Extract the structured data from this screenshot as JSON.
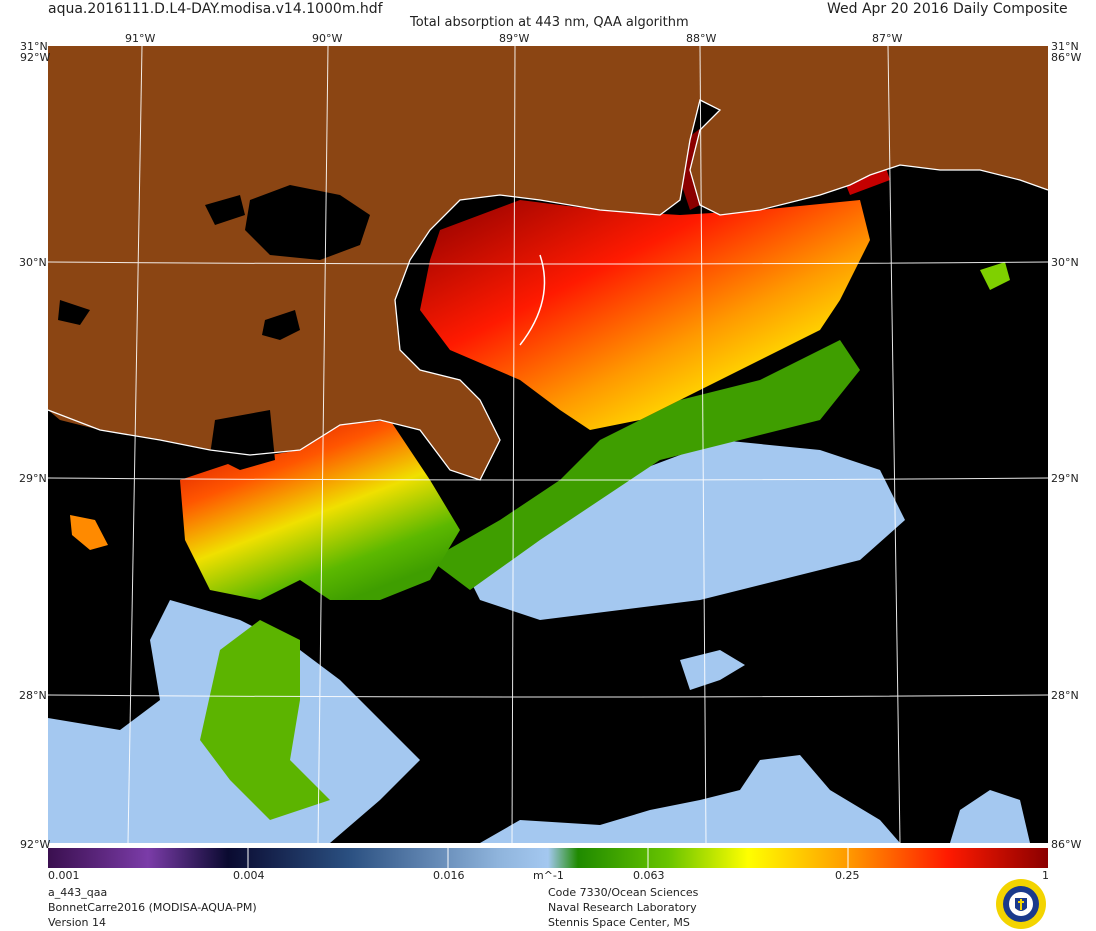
{
  "header": {
    "filename": "aqua.2016111.D.L4-DAY.modisa.v14.1000m.hdf",
    "title": "Total absorption at 443 nm, QAA algorithm",
    "date": "Wed Apr 20 2016 Daily Composite"
  },
  "map": {
    "lon_labels_top": [
      "91°W",
      "90°W",
      "89°W",
      "88°W",
      "87°W"
    ],
    "lat_labels": [
      "30°N",
      "29°N",
      "28°N"
    ],
    "corner_top_left": "31°N",
    "corner_top_right": "31°N",
    "corner_side_top_left": "92°W",
    "corner_side_top_right": "86°W",
    "corner_bottom_left": "92°W",
    "corner_bottom_right": "86°W",
    "land_color": "#8b4513",
    "nodata_color": "#000000",
    "coast_color": "#ffffff"
  },
  "colorbar": {
    "ticks": [
      "0.001",
      "0.004",
      "0.016",
      "0.063",
      "0.25",
      "1"
    ],
    "units": "m^-1",
    "scale": "log"
  },
  "footer": {
    "product": "a_443_qaa",
    "project": "BonnetCarre2016 (MODISA-AQUA-PM)",
    "version": "Version 14",
    "org1": "Code 7330/Ocean Sciences",
    "org2": "Naval Research Laboratory",
    "org3": "Stennis Space Center, MS",
    "logo_icon": "nrl-seal-icon"
  }
}
